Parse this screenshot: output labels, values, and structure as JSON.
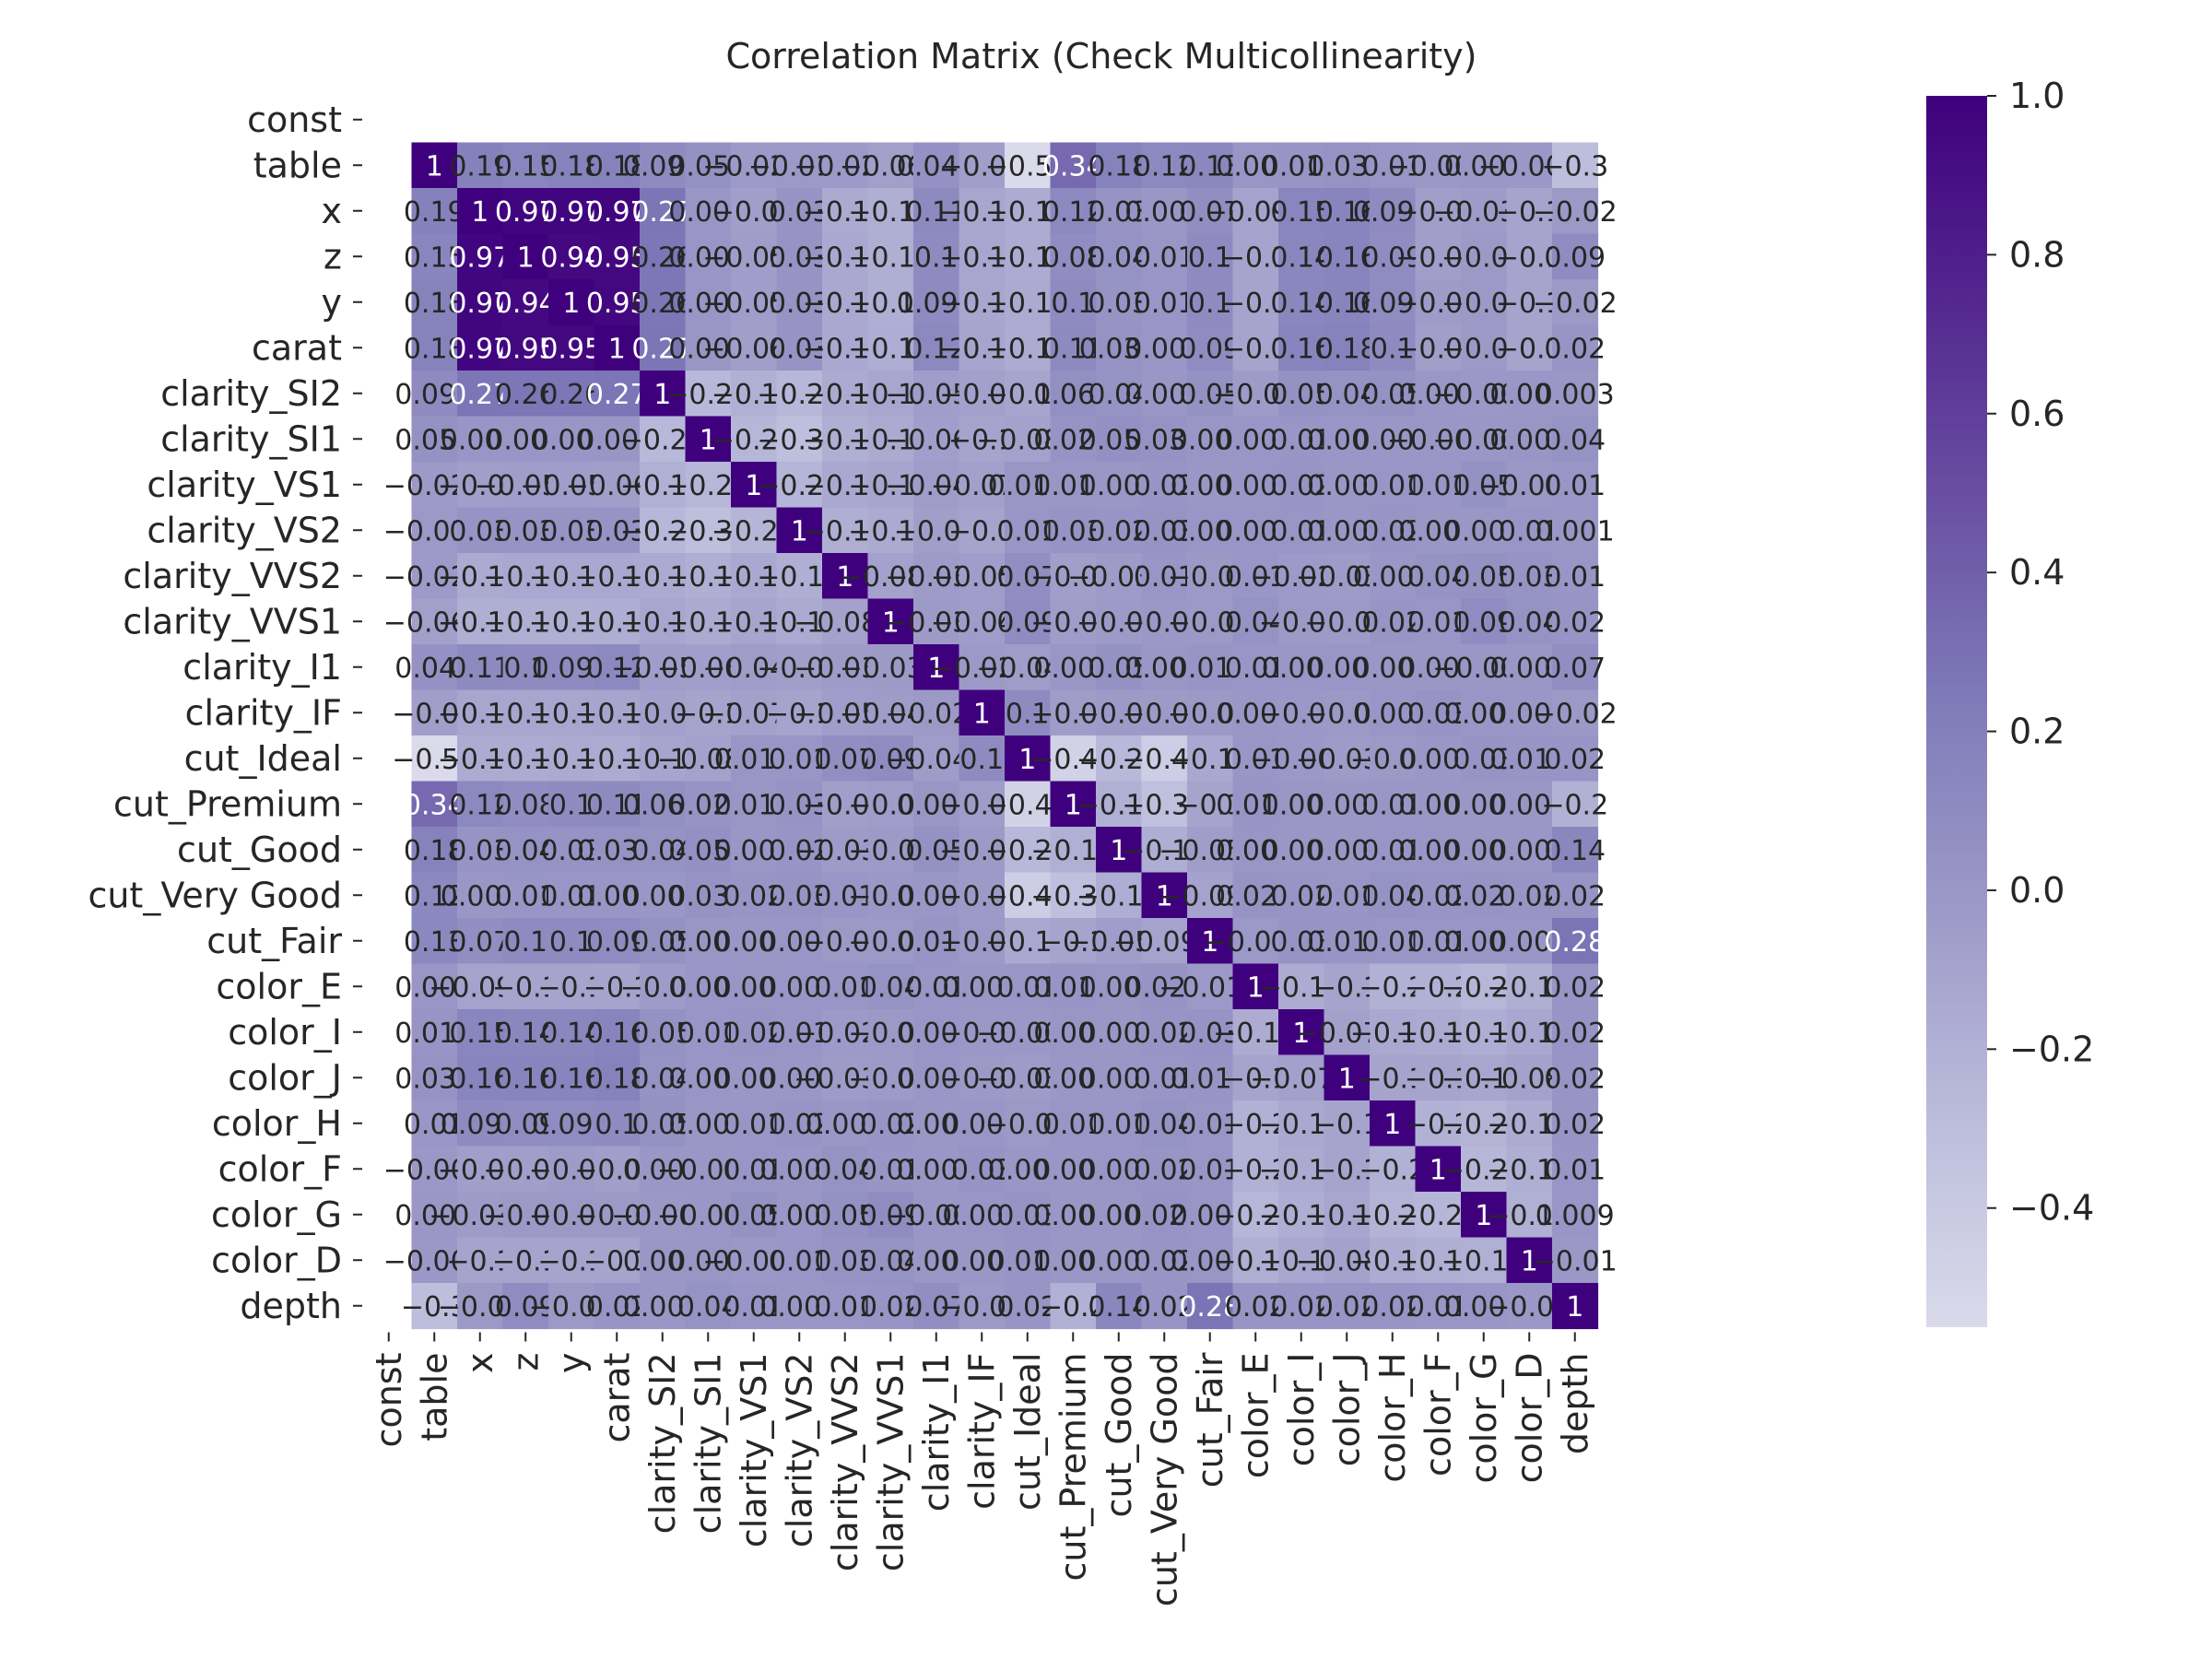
{
  "chart_data": {
    "type": "heatmap",
    "title": "Correlation Matrix (Check Multicollinearity)",
    "variables": [
      "const",
      "table",
      "x",
      "z",
      "y",
      "carat",
      "clarity_SI2",
      "clarity_SI1",
      "clarity_VS1",
      "clarity_VS2",
      "clarity_VVS2",
      "clarity_VVS1",
      "clarity_I1",
      "clarity_IF",
      "cut_Ideal",
      "cut_Premium",
      "cut_Good",
      "cut_Very Good",
      "cut_Fair",
      "color_E",
      "color_I",
      "color_J",
      "color_H",
      "color_F",
      "color_G",
      "color_D",
      "depth"
    ],
    "values": [
      [
        null,
        null,
        null,
        null,
        null,
        null,
        null,
        null,
        null,
        null,
        null,
        null,
        null,
        null,
        null,
        null,
        null,
        null,
        null,
        null,
        null,
        null,
        null,
        null,
        null,
        null,
        null
      ],
      [
        null,
        1,
        0.19,
        0.15,
        0.18,
        0.18,
        0.097,
        0.051,
        -0.026,
        -0.012,
        -0.026,
        -0.068,
        0.046,
        -0.06,
        -0.55,
        0.34,
        0.18,
        0.12,
        0.13,
        0.009,
        0.016,
        0.039,
        0.01,
        -0.006,
        0.003,
        -0.006,
        -0.3
      ],
      [
        null,
        0.19,
        1,
        0.97,
        0.97,
        0.97,
        0.27,
        0.008,
        -0.06,
        0.03,
        -0.15,
        -0.18,
        0.11,
        -0.12,
        -0.16,
        0.12,
        0.03,
        0.004,
        0.07,
        -0.094,
        0.15,
        0.16,
        0.098,
        -0.06,
        -0.039,
        -0.1,
        -0.02
      ],
      [
        null,
        0.15,
        0.97,
        1,
        0.94,
        0.95,
        0.26,
        0.008,
        -0.058,
        0.03,
        -0.14,
        -0.18,
        0.1,
        -0.12,
        -0.16,
        0.08,
        0.04,
        0.01,
        0.1,
        -0.1,
        0.14,
        0.16,
        0.09,
        -0.06,
        -0.02,
        -0.1,
        0.09
      ],
      [
        null,
        0.18,
        0.97,
        0.94,
        1,
        0.95,
        0.26,
        0.007,
        -0.057,
        0.03,
        -0.14,
        -0.18,
        0.099,
        -0.12,
        -0.15,
        0.1,
        0.03,
        0.01,
        0.1,
        -0.1,
        0.14,
        0.16,
        0.095,
        -0.04,
        -0.02,
        -0.1,
        -0.02
      ],
      [
        null,
        0.18,
        0.97,
        0.95,
        0.95,
        1,
        0.27,
        0.006,
        -0.064,
        0.03,
        -0.14,
        -0.17,
        0.12,
        -0.11,
        -0.16,
        0.11,
        0.034,
        0.009,
        0.09,
        -0.1,
        0.16,
        0.18,
        0.1,
        -0.06,
        -0.02,
        -0.1,
        0.02
      ],
      [
        null,
        0.097,
        0.27,
        0.26,
        0.26,
        0.27,
        1,
        -0.26,
        -0.19,
        -0.25,
        -0.15,
        -0.12,
        -0.053,
        -0.08,
        -0.11,
        0.067,
        0.04,
        0.004,
        0.05,
        -0.04,
        0.05,
        0.04,
        0.05,
        0.003,
        -0.005,
        0.003,
        0.003
      ],
      [
        null,
        0.051,
        0.008,
        0.008,
        0.007,
        0.006,
        -0.26,
        1,
        -0.24,
        -0.31,
        -0.18,
        -0.15,
        -0.066,
        -0.1,
        -0.083,
        0.025,
        0.053,
        0.032,
        0.006,
        0.007,
        0.01,
        0.007,
        0.003,
        -0.002,
        -0.003,
        0.006,
        0.04
      ],
      [
        null,
        -0.026,
        -0.06,
        -0.058,
        -0.057,
        -0.064,
        -0.19,
        -0.24,
        1,
        -0.23,
        -0.14,
        -0.11,
        -0.049,
        -0.078,
        0.013,
        0.014,
        0.001,
        0.02,
        0.002,
        0.006,
        0.02,
        0.004,
        0.01,
        0.01,
        0.05,
        -0.005,
        0.01
      ],
      [
        null,
        -0.012,
        0.03,
        0.03,
        0.03,
        0.03,
        -0.25,
        -0.31,
        -0.23,
        1,
        -0.18,
        -0.15,
        -0.06,
        -0.1,
        0.01,
        0.03,
        0.02,
        0.03,
        0.008,
        0.007,
        0.01,
        0.002,
        0.02,
        0.003,
        0.005,
        0.01,
        0.001
      ],
      [
        null,
        -0.026,
        -0.15,
        -0.14,
        -0.14,
        -0.14,
        -0.15,
        -0.18,
        -0.14,
        -0.18,
        1,
        -0.087,
        -0.038,
        -0.059,
        0.07,
        -0.06,
        -0.038,
        0.01,
        -0.02,
        0.01,
        -0.025,
        -0.038,
        0.003,
        0.04,
        0.05,
        0.03,
        0.01
      ],
      [
        null,
        -0.068,
        -0.18,
        -0.18,
        -0.18,
        -0.17,
        -0.12,
        -0.15,
        -0.11,
        -0.15,
        -0.087,
        1,
        -0.031,
        -0.049,
        0.09,
        -0.05,
        -0.03,
        -0.01,
        -0.02,
        0.04,
        -0.02,
        -0.03,
        0.02,
        0.01,
        0.09,
        0.04,
        0.02
      ],
      [
        null,
        0.046,
        0.11,
        0.1,
        0.099,
        0.12,
        -0.053,
        -0.066,
        -0.049,
        -0.06,
        -0.038,
        -0.031,
        1,
        -0.022,
        -0.048,
        0.006,
        0.05,
        0.003,
        0.018,
        0.01,
        0.009,
        0.008,
        0.003,
        0.003,
        -0.001,
        0.002,
        0.07
      ],
      [
        null,
        -0.06,
        -0.12,
        -0.12,
        -0.12,
        -0.11,
        -0.08,
        -0.1,
        -0.078,
        -0.1,
        -0.059,
        -0.049,
        -0.022,
        1,
        0.1,
        -0.05,
        -0.03,
        -0.03,
        -0.02,
        0.004,
        -0.01,
        -0.02,
        0.007,
        0.03,
        0.008,
        0.004,
        -0.02
      ],
      [
        null,
        -0.55,
        -0.16,
        -0.16,
        -0.15,
        -0.16,
        -0.11,
        -0.083,
        0.013,
        0.01,
        0.07,
        0.09,
        -0.048,
        0.1,
        1,
        -0.48,
        -0.26,
        -0.44,
        -0.14,
        0.01,
        -0.007,
        -0.039,
        -0.02,
        0.002,
        0.03,
        0.016,
        0.02
      ],
      [
        null,
        0.34,
        0.12,
        0.08,
        0.1,
        0.11,
        0.067,
        0.025,
        0.014,
        0.03,
        -0.06,
        -0.05,
        0.006,
        -0.05,
        -0.48,
        1,
        -0.19,
        -0.32,
        -0.1,
        0.018,
        0.006,
        0.001,
        0.01,
        0.005,
        0.001,
        0.001,
        -0.2
      ],
      [
        null,
        0.18,
        0.03,
        0.04,
        0.03,
        0.034,
        0.04,
        0.053,
        0.001,
        0.02,
        -0.038,
        -0.03,
        0.05,
        -0.03,
        -0.26,
        -0.19,
        1,
        -0.17,
        -0.056,
        0.006,
        0.004,
        0.001,
        0.01,
        0.009,
        0.005,
        0.003,
        0.14
      ],
      [
        null,
        0.12,
        0.004,
        0.01,
        0.01,
        0.009,
        0.004,
        0.032,
        0.02,
        0.03,
        0.01,
        -0.01,
        0.003,
        -0.03,
        -0.44,
        -0.32,
        -0.17,
        1,
        -0.095,
        0.026,
        0.02,
        0.01,
        0.04,
        0.02,
        0.026,
        0.02,
        0.02
      ],
      [
        null,
        0.13,
        0.07,
        0.1,
        0.1,
        0.09,
        0.05,
        0.006,
        0.002,
        0.008,
        -0.02,
        -0.02,
        0.018,
        -0.02,
        -0.14,
        -0.1,
        -0.056,
        -0.095,
        1,
        -0.019,
        0.03,
        0.019,
        0.01,
        0.01,
        0.008,
        0.009,
        0.28
      ],
      [
        null,
        0.009,
        -0.094,
        -0.1,
        -0.1,
        -0.1,
        -0.04,
        0.007,
        0.006,
        0.007,
        0.01,
        0.04,
        0.01,
        0.004,
        0.01,
        0.018,
        0.006,
        0.026,
        -0.019,
        1,
        -0.16,
        -0.1,
        -0.2,
        -0.2,
        -0.24,
        -0.18,
        0.02
      ],
      [
        null,
        0.016,
        0.15,
        0.14,
        0.14,
        0.16,
        0.05,
        0.01,
        0.02,
        0.01,
        -0.025,
        -0.02,
        0.009,
        -0.01,
        -0.007,
        0.006,
        0.004,
        0.02,
        0.03,
        -0.16,
        1,
        -0.078,
        -0.14,
        -0.15,
        -0.17,
        -0.13,
        0.02
      ],
      [
        null,
        0.039,
        0.16,
        0.16,
        0.16,
        0.18,
        0.04,
        0.007,
        0.004,
        0.002,
        -0.038,
        -0.03,
        0.008,
        -0.02,
        -0.039,
        0.001,
        0.001,
        0.01,
        0.019,
        -0.1,
        -0.078,
        1,
        -0.1,
        -0.1,
        -0.12,
        -0.088,
        0.02
      ],
      [
        null,
        0.01,
        0.098,
        0.09,
        0.095,
        0.1,
        0.05,
        0.003,
        0.01,
        0.02,
        0.003,
        0.02,
        0.003,
        0.007,
        -0.02,
        0.01,
        0.01,
        0.04,
        0.01,
        -0.2,
        -0.14,
        -0.1,
        1,
        -0.2,
        -0.22,
        -0.16,
        0.02
      ],
      [
        null,
        -0.006,
        -0.06,
        -0.06,
        -0.04,
        -0.06,
        0.003,
        -0.002,
        0.01,
        0.003,
        0.04,
        0.01,
        0.003,
        0.03,
        0.002,
        0.005,
        0.009,
        0.02,
        0.01,
        -0.2,
        -0.15,
        -0.1,
        -0.2,
        1,
        -0.24,
        -0.18,
        0.01
      ],
      [
        null,
        0.003,
        -0.039,
        -0.02,
        -0.02,
        -0.02,
        -0.005,
        -0.003,
        0.05,
        0.005,
        0.05,
        0.09,
        -0.001,
        0.008,
        0.03,
        0.001,
        0.005,
        0.026,
        0.008,
        -0.24,
        -0.17,
        -0.12,
        -0.22,
        -0.24,
        1,
        -0.19,
        0.009
      ],
      [
        null,
        -0.006,
        -0.1,
        -0.1,
        -0.1,
        -0.1,
        0.003,
        0.006,
        -0.005,
        0.01,
        0.03,
        0.04,
        0.002,
        0.004,
        0.016,
        0.001,
        0.003,
        0.02,
        0.009,
        -0.18,
        -0.13,
        -0.088,
        -0.16,
        -0.18,
        -0.19,
        1,
        -0.01
      ],
      [
        null,
        -0.3,
        -0.02,
        0.09,
        -0.02,
        0.02,
        0.003,
        0.04,
        0.01,
        0.001,
        0.01,
        0.02,
        0.07,
        -0.02,
        0.02,
        -0.2,
        0.14,
        0.02,
        0.28,
        0.02,
        0.02,
        0.02,
        0.02,
        0.01,
        0.009,
        -0.01,
        1
      ]
    ],
    "vmin": -0.55,
    "vmax": 1,
    "colorbar_ticks": [
      1.0,
      0.8,
      0.6,
      0.4,
      0.2,
      0.0,
      -0.2,
      -0.4
    ],
    "colorbar_tick_labels": [
      "1.0",
      "0.8",
      "0.6",
      "0.4",
      "0.2",
      "0.0",
      "−0.2",
      "−0.4"
    ],
    "colormap": [
      "#dadaeb",
      "#bcbddc",
      "#9e9ac8",
      "#807dba",
      "#6a51a3",
      "#54278f",
      "#3f007d"
    ],
    "annotations": true
  }
}
